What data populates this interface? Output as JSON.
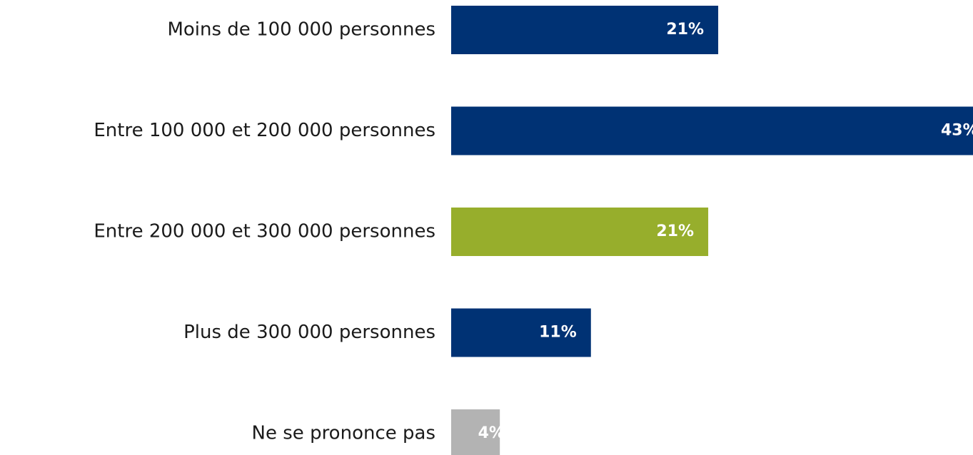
{
  "chart_data": {
    "type": "bar",
    "orientation": "horizontal",
    "categories": [
      "Moins de 100 000 personnes",
      "Entre 100 000 et 200 000 personnes",
      "Entre 200 000 et 300 000 personnes",
      "Plus de 300 000 personnes",
      "Ne se prononce pas"
    ],
    "values": [
      21.4,
      43.4,
      20.6,
      11.2,
      3.9
    ],
    "value_labels": [
      "21%",
      "43%",
      "21%",
      "11%",
      "4%"
    ],
    "colors": [
      "#003274",
      "#003274",
      "#97ae2c",
      "#003274",
      "#b3b3b3"
    ],
    "xlim": [
      0,
      45
    ]
  }
}
